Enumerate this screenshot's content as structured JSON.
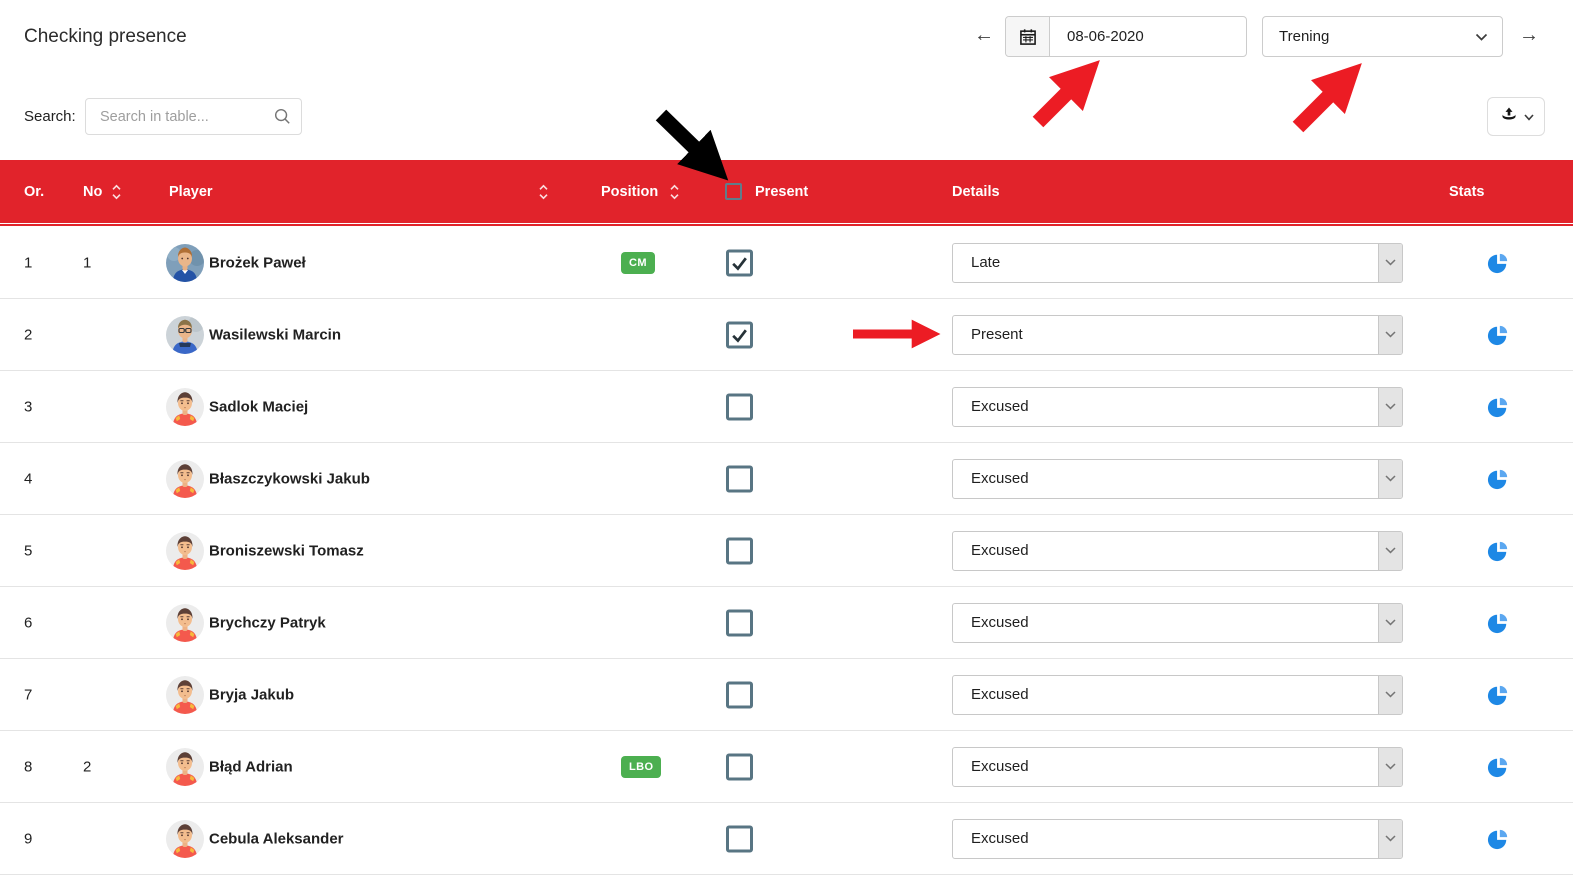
{
  "page_title": "Checking presence",
  "toolbar": {
    "prev_label": "←",
    "next_label": "→",
    "date": {
      "value": "08-06-2020"
    },
    "event_select": {
      "value": "Trening"
    }
  },
  "search": {
    "label": "Search:",
    "placeholder": "Search in table..."
  },
  "table": {
    "headers": {
      "or": "Or.",
      "no": "No",
      "player": "Player",
      "position": "Position",
      "present": "Present",
      "details": "Details",
      "stats": "Stats"
    },
    "rows": [
      {
        "or": "1",
        "no": "1",
        "player": "Brożek Paweł",
        "position": "CM",
        "present": true,
        "details": "Late",
        "avatar": "photo-player-1"
      },
      {
        "or": "2",
        "no": "",
        "player": "Wasilewski Marcin",
        "position": "",
        "present": true,
        "details": "Present",
        "avatar": "photo-player-2"
      },
      {
        "or": "3",
        "no": "",
        "player": "Sadlok Maciej",
        "position": "",
        "present": false,
        "details": "Excused",
        "avatar": "cartoon-kit"
      },
      {
        "or": "4",
        "no": "",
        "player": "Błaszczykowski Jakub",
        "position": "",
        "present": false,
        "details": "Excused",
        "avatar": "cartoon-kit"
      },
      {
        "or": "5",
        "no": "",
        "player": "Broniszewski Tomasz",
        "position": "",
        "present": false,
        "details": "Excused",
        "avatar": "cartoon-kit"
      },
      {
        "or": "6",
        "no": "",
        "player": "Brychczy Patryk",
        "position": "",
        "present": false,
        "details": "Excused",
        "avatar": "cartoon-kit"
      },
      {
        "or": "7",
        "no": "",
        "player": "Bryja Jakub",
        "position": "",
        "present": false,
        "details": "Excused",
        "avatar": "cartoon-kit"
      },
      {
        "or": "8",
        "no": "2",
        "player": "Błąd Adrian",
        "position": "LBO",
        "present": false,
        "details": "Excused",
        "avatar": "cartoon-kit"
      },
      {
        "or": "9",
        "no": "",
        "player": "Cebula Aleksander",
        "position": "",
        "present": false,
        "details": "Excused",
        "avatar": "cartoon-kit"
      }
    ]
  },
  "annotations": [
    {
      "shape": "arrow",
      "color": "#000000",
      "points_to": "present-header-checkbox"
    },
    {
      "shape": "arrow",
      "color": "#ec1c24",
      "points_to": "date-input"
    },
    {
      "shape": "arrow",
      "color": "#ec1c24",
      "points_to": "event-type-select"
    },
    {
      "shape": "arrow",
      "color": "#ec1c24",
      "points_to": "details-select-row-2"
    }
  ],
  "colors": {
    "header_red": "#e1232b",
    "badge_green": "#4caf50",
    "pie_blue": "#1e88e5",
    "annotation_red": "#ec1c24",
    "annotation_black": "#000000",
    "checkbox_border": "#587583"
  }
}
